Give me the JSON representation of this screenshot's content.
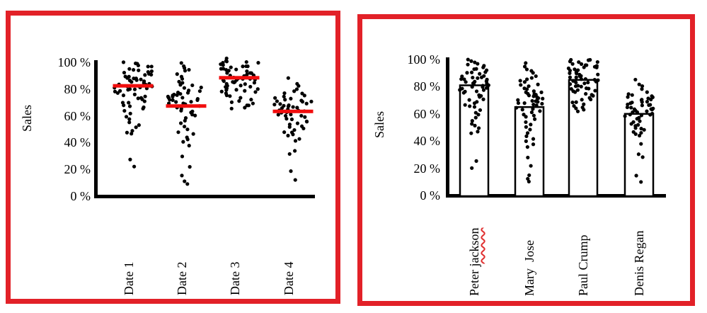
{
  "colors": {
    "frame_red": "#e22128",
    "mean_line_red": "#f10e0e",
    "dot_black": "#000000",
    "axis_black": "#000000",
    "bar_fill": "#ffffff",
    "bar_stroke": "#000000"
  },
  "chart_data": [
    {
      "type": "scatter",
      "subtype": "strip-plot-with-mean-lines",
      "title": "",
      "ylabel": "Sales",
      "xlabel": "",
      "ylim": [
        0,
        100
      ],
      "grid": false,
      "legend": "none",
      "yticks": [
        "0 %",
        "20 %",
        "40 %",
        "60 %",
        "80 %",
        "100 %"
      ],
      "categories": [
        "Date 1",
        "Date 2",
        "Date 3",
        "Date 4"
      ],
      "mean_values": [
        82,
        67,
        88,
        63
      ],
      "series": [
        {
          "name": "Date 1",
          "values": [
            100,
            99,
            98,
            97,
            96,
            96,
            95,
            94,
            94,
            93,
            92,
            92,
            91,
            90,
            90,
            89,
            89,
            88,
            88,
            87,
            87,
            86,
            86,
            85,
            85,
            84,
            84,
            83,
            83,
            82,
            82,
            81,
            81,
            80,
            80,
            79,
            79,
            78,
            78,
            77,
            76,
            75,
            74,
            73,
            73,
            72,
            71,
            70,
            69,
            68,
            67,
            66,
            65,
            63,
            61,
            59,
            57,
            55,
            53,
            51,
            49,
            47,
            46,
            27,
            22
          ]
        },
        {
          "name": "Date 2",
          "values": [
            99,
            97,
            95,
            94,
            93,
            91,
            89,
            87,
            85,
            84,
            83,
            82,
            81,
            80,
            79,
            78,
            77,
            77,
            76,
            76,
            75,
            75,
            74,
            74,
            73,
            73,
            72,
            72,
            71,
            71,
            70,
            70,
            69,
            69,
            68,
            68,
            67,
            67,
            66,
            65,
            64,
            63,
            62,
            61,
            60,
            58,
            56,
            54,
            52,
            50,
            48,
            46,
            44,
            42,
            40,
            38,
            29,
            22,
            15,
            11,
            9
          ]
        },
        {
          "name": "Date 3",
          "values": [
            102,
            101,
            100,
            100,
            99,
            99,
            98,
            98,
            97,
            97,
            96,
            96,
            95,
            95,
            94,
            94,
            93,
            93,
            92,
            92,
            91,
            91,
            90,
            90,
            89,
            89,
            88,
            88,
            88,
            87,
            87,
            87,
            86,
            86,
            86,
            85,
            85,
            84,
            84,
            83,
            83,
            82,
            82,
            81,
            81,
            80,
            80,
            79,
            79,
            78,
            78,
            77,
            76,
            75,
            74,
            73,
            72,
            71,
            70,
            69,
            68,
            67,
            66,
            65
          ]
        },
        {
          "name": "Date 4",
          "values": [
            88,
            84,
            82,
            80,
            78,
            77,
            76,
            75,
            74,
            73,
            72,
            72,
            71,
            71,
            70,
            70,
            69,
            69,
            68,
            68,
            67,
            67,
            66,
            66,
            65,
            65,
            64,
            64,
            63,
            63,
            62,
            62,
            61,
            61,
            60,
            60,
            59,
            58,
            57,
            56,
            55,
            54,
            53,
            52,
            51,
            50,
            49,
            48,
            47,
            46,
            45,
            43,
            41,
            34,
            31,
            19,
            12
          ]
        }
      ]
    },
    {
      "type": "bar",
      "subtype": "bar-with-dot-overlay",
      "title": "",
      "ylabel": "Sales",
      "xlabel": "",
      "ylim": [
        0,
        100
      ],
      "grid": false,
      "legend": "none",
      "yticks": [
        "0 %",
        "20 %",
        "40 %",
        "60 %",
        "80 %",
        "100 %"
      ],
      "categories": [
        "Peter jackson",
        "Mary  Jose",
        "Paul Crump",
        "Denis Regan"
      ],
      "bar_values": [
        81,
        65,
        85,
        60
      ],
      "spellcheck": {
        "index": 0,
        "prefix": "Peter ",
        "word": "jackson"
      },
      "series": [
        {
          "name": "Peter jackson",
          "values": [
            100,
            99,
            98,
            97,
            96,
            95,
            94,
            93,
            93,
            92,
            91,
            90,
            90,
            89,
            88,
            88,
            87,
            87,
            86,
            86,
            85,
            85,
            84,
            84,
            83,
            83,
            82,
            82,
            81,
            81,
            80,
            80,
            79,
            79,
            78,
            78,
            77,
            76,
            75,
            74,
            73,
            72,
            71,
            70,
            69,
            68,
            67,
            66,
            65,
            63,
            61,
            59,
            57,
            55,
            53,
            51,
            49,
            47,
            46,
            25,
            20
          ]
        },
        {
          "name": "Mary  Jose",
          "values": [
            97,
            95,
            93,
            92,
            90,
            88,
            86,
            85,
            84,
            83,
            82,
            81,
            80,
            79,
            78,
            77,
            76,
            76,
            75,
            75,
            74,
            74,
            73,
            72,
            72,
            71,
            71,
            70,
            70,
            69,
            69,
            68,
            68,
            67,
            67,
            66,
            65,
            64,
            63,
            62,
            61,
            60,
            59,
            58,
            56,
            54,
            52,
            50,
            48,
            46,
            44,
            42,
            40,
            38,
            36,
            28,
            22,
            15,
            12,
            10
          ]
        },
        {
          "name": "Paul Crump",
          "values": [
            100,
            100,
            99,
            99,
            98,
            98,
            97,
            97,
            96,
            96,
            95,
            95,
            94,
            94,
            93,
            93,
            92,
            92,
            91,
            91,
            90,
            90,
            89,
            89,
            88,
            88,
            87,
            87,
            86,
            86,
            85,
            85,
            84,
            84,
            83,
            83,
            82,
            82,
            81,
            80,
            80,
            79,
            79,
            78,
            78,
            77,
            77,
            76,
            75,
            74,
            73,
            72,
            71,
            70,
            69,
            68,
            67,
            66,
            65,
            64,
            63,
            62
          ]
        },
        {
          "name": "Denis Regan",
          "values": [
            85,
            82,
            80,
            78,
            76,
            75,
            74,
            73,
            72,
            72,
            71,
            71,
            70,
            70,
            69,
            69,
            68,
            68,
            67,
            67,
            66,
            66,
            65,
            65,
            64,
            64,
            63,
            63,
            62,
            62,
            61,
            61,
            60,
            60,
            59,
            59,
            58,
            57,
            56,
            55,
            54,
            53,
            52,
            51,
            50,
            49,
            48,
            47,
            46,
            45,
            44,
            38,
            30,
            28,
            15,
            10
          ]
        }
      ]
    }
  ]
}
